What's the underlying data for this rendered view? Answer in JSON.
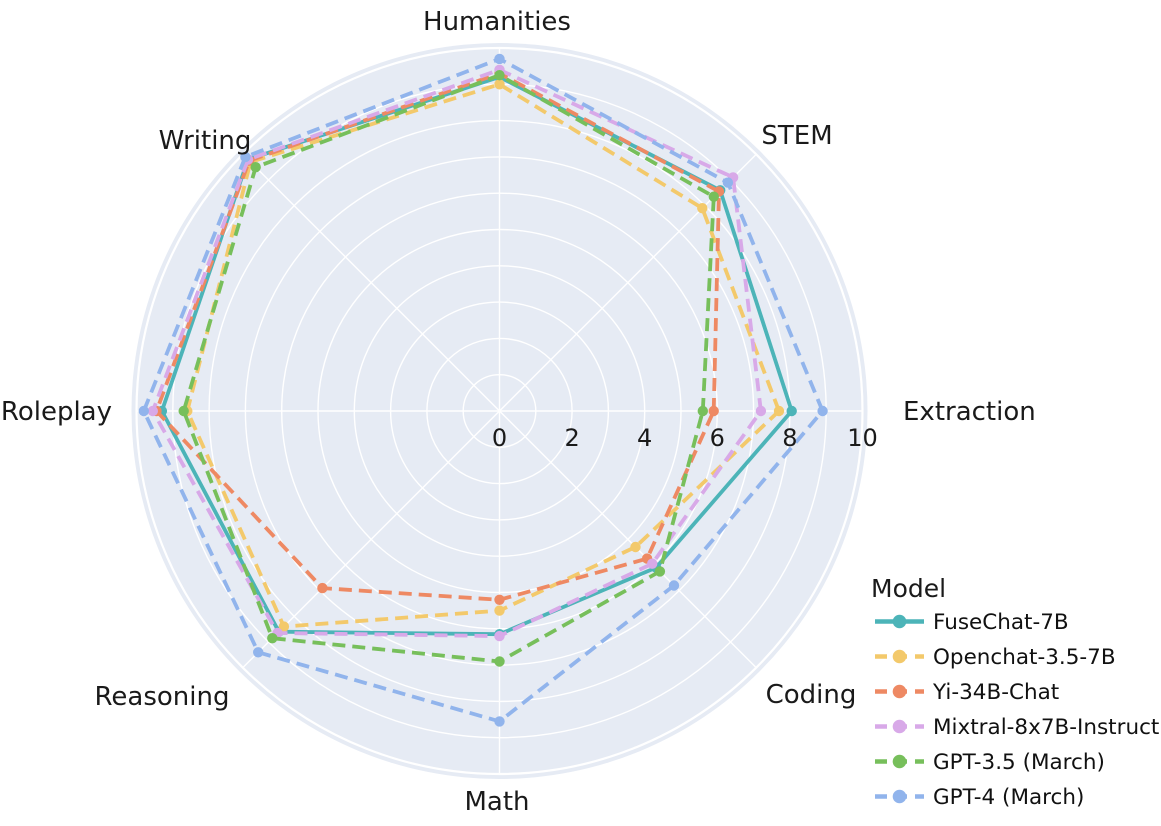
{
  "chart_data": {
    "type": "radar",
    "title": "",
    "categories": [
      "Extraction",
      "STEM",
      "Humanities",
      "Writing",
      "Roleplay",
      "Reasoning",
      "Math",
      "Coding"
    ],
    "radial_axis": {
      "min": 0,
      "max": 10,
      "tick_labels": [
        "0",
        "2",
        "4",
        "6",
        "8",
        "10"
      ],
      "tick_values": [
        0,
        2,
        4,
        6,
        8,
        10
      ],
      "grid_interval": 1,
      "grid": true
    },
    "legend": {
      "title": "Model",
      "position": "lower-right"
    },
    "colors": {
      "plot_background": "#e6ebf4",
      "grid_line": "#ffffff",
      "text": "#1a1a1a"
    },
    "series": [
      {
        "name": "FuseChat-7B",
        "color": "#4cb4b8",
        "line_style": "solid",
        "values": [
          8.05,
          8.6,
          9.2,
          9.8,
          9.3,
          8.6,
          6.15,
          6.1
        ]
      },
      {
        "name": "Openchat-3.5-7B",
        "color": "#f3c96b",
        "line_style": "dashed",
        "values": [
          7.7,
          7.9,
          9.0,
          9.7,
          8.6,
          8.4,
          5.5,
          5.3
        ]
      },
      {
        "name": "Yi-34B-Chat",
        "color": "#ee8963",
        "line_style": "dashed",
        "values": [
          5.9,
          8.55,
          9.3,
          9.75,
          9.45,
          6.9,
          5.2,
          5.75
        ]
      },
      {
        "name": "Mixtral-8x7B-Instruct",
        "color": "#d8a9e8",
        "line_style": "dashed",
        "values": [
          7.2,
          9.1,
          9.4,
          9.8,
          9.55,
          8.65,
          6.2,
          5.95
        ]
      },
      {
        "name": "GPT-3.5 (March)",
        "color": "#77bf5b",
        "line_style": "dashed",
        "values": [
          5.6,
          8.35,
          9.25,
          9.5,
          8.7,
          8.85,
          6.9,
          6.25
        ]
      },
      {
        "name": "GPT-4 (March)",
        "color": "#91b4ec",
        "line_style": "dashed",
        "values": [
          8.9,
          8.9,
          9.7,
          9.9,
          9.8,
          9.4,
          8.55,
          6.8
        ]
      }
    ]
  }
}
